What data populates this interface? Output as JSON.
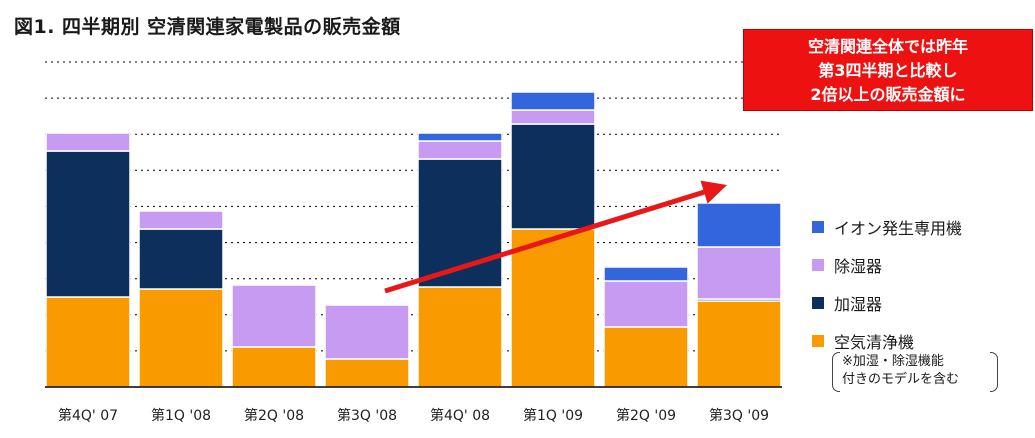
{
  "title": "図1. 四半期別 空清関連家電製品の販売金額",
  "callout": {
    "lines": [
      "空清関連全体では昨年",
      "第3四半期と比較し",
      "2倍以上の販売金額に"
    ]
  },
  "legend": [
    {
      "label": "イオン発生専用機",
      "color": "#3366dd"
    },
    {
      "label": "除湿器",
      "color": "#c89bf2"
    },
    {
      "label": "加湿器",
      "color": "#0d2f5c"
    },
    {
      "label": "空気清浄機",
      "color": "#f99a00"
    }
  ],
  "note": {
    "lines": [
      "※加湿・除湿機能",
      "付きのモデルを含む"
    ]
  },
  "colors": {
    "arrow": "#e81818",
    "gridline": "#000000",
    "axis": "#000000"
  },
  "chart_data": {
    "type": "bar",
    "stacked": true,
    "title": "図1. 四半期別 空清関連家電製品の販売金額",
    "categories": [
      "第4Q' 07",
      "第1Q '08",
      "第2Q '08",
      "第3Q '08",
      "第4Q' 08",
      "第1Q '09",
      "第2Q '09",
      "第3Q '09"
    ],
    "series": [
      {
        "name": "空気清浄機",
        "color": "#f99a00",
        "values": [
          90,
          98,
          40,
          28,
          100,
          158,
          60,
          86
        ]
      },
      {
        "name": "加湿器",
        "color": "#0d2f5c",
        "values": [
          146,
          60,
          0,
          0,
          128,
          105,
          0,
          2
        ]
      },
      {
        "name": "除湿器",
        "color": "#c89bf2",
        "values": [
          18,
          18,
          62,
          54,
          18,
          14,
          46,
          52
        ]
      },
      {
        "name": "イオン発生専用機",
        "color": "#3366dd",
        "values": [
          0,
          0,
          0,
          0,
          8,
          18,
          14,
          44
        ]
      }
    ],
    "ylim": [
      0,
      325
    ],
    "grid": true,
    "legend_position": "right",
    "arrow": {
      "from_category": "第3Q '08",
      "to_category": "第3Q '09"
    },
    "xlabel": "",
    "ylabel": ""
  }
}
